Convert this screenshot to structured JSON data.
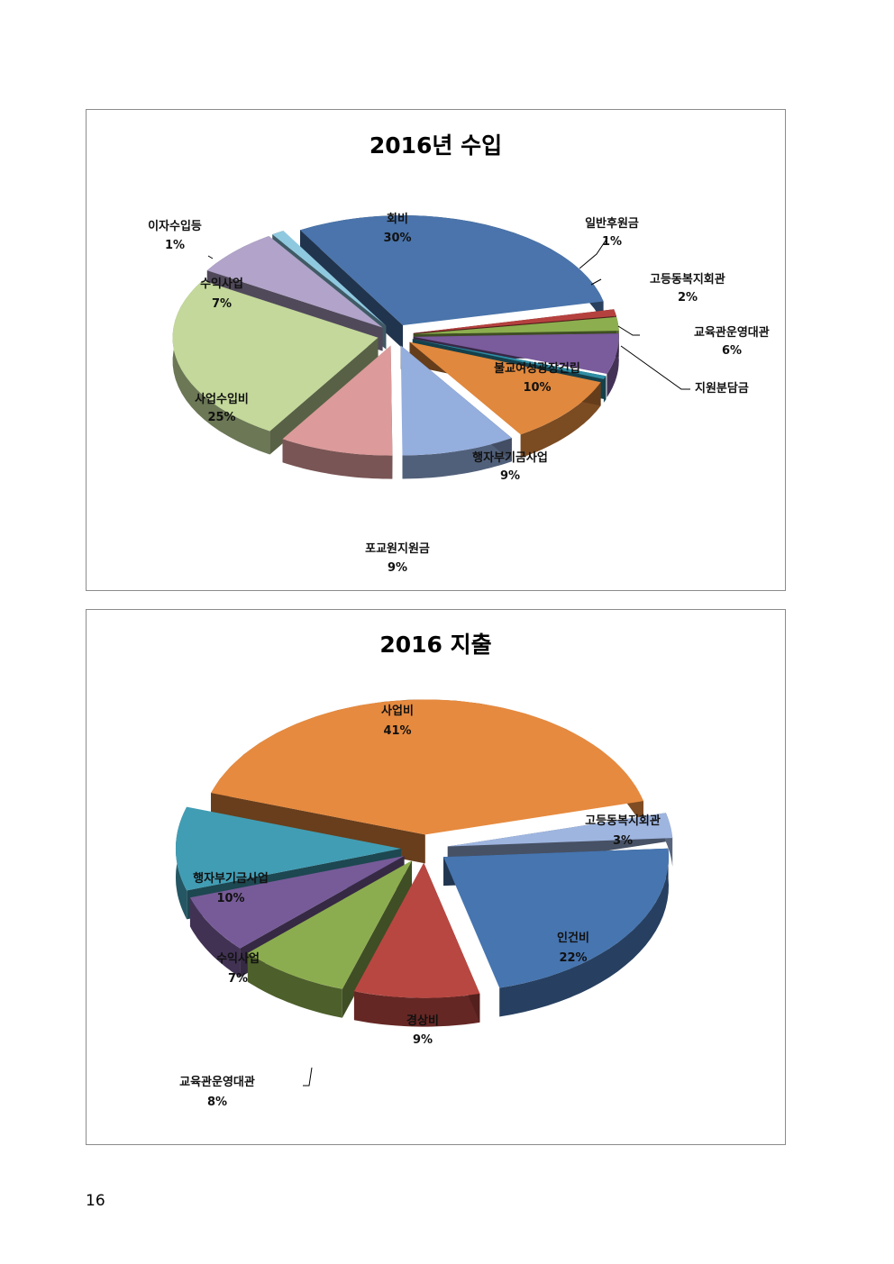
{
  "page": {
    "number": "16"
  },
  "chart_data": [
    {
      "type": "pie",
      "title": "2016년 수입",
      "slices": [
        {
          "name": "회비",
          "value": 30,
          "label": "30%",
          "color": "#4a74ab"
        },
        {
          "name": "일반후원금",
          "value": 1,
          "label": "1%",
          "color": "#b5413e"
        },
        {
          "name": "고등동복지회관",
          "value": 2,
          "label": "2%",
          "color": "#8cae4e"
        },
        {
          "name": "교육관운영대관",
          "value": 6,
          "label": "6%",
          "color": "#7a5b9c"
        },
        {
          "name": "지원분담금",
          "value": 0.5,
          "label": "",
          "color": "#2f8ea6"
        },
        {
          "name": "불교여성광장건립",
          "value": 10,
          "label": "10%",
          "color": "#e0883d"
        },
        {
          "name": "행자부기금사업",
          "value": 9,
          "label": "9%",
          "color": "#94aede"
        },
        {
          "name": "포교원지원금",
          "value": 9,
          "label": "9%",
          "color": "#dc9a9a"
        },
        {
          "name": "사업수입비",
          "value": 25,
          "label": "25%",
          "color": "#c3d89a"
        },
        {
          "name": "수익사업",
          "value": 7,
          "label": "7%",
          "color": "#b1a3c9"
        },
        {
          "name": "이자수입등",
          "value": 1,
          "label": "1%",
          "color": "#8fc9e0"
        }
      ]
    },
    {
      "type": "pie",
      "title": "2016  지출",
      "slices": [
        {
          "name": "사업비",
          "value": 41,
          "label": "41%",
          "color": "#e68a3f"
        },
        {
          "name": "고등동복지회관",
          "value": 3,
          "label": "3%",
          "color": "#9eb5e0"
        },
        {
          "name": "인건비",
          "value": 22,
          "label": "22%",
          "color": "#4675b0"
        },
        {
          "name": "경상비",
          "value": 9,
          "label": "9%",
          "color": "#b84741"
        },
        {
          "name": "교육관운영대관",
          "value": 8,
          "label": "8%",
          "color": "#8cad4f"
        },
        {
          "name": "수익사업",
          "value": 7,
          "label": "7%",
          "color": "#775b98"
        },
        {
          "name": "행자부기금사업",
          "value": 10,
          "label": "10%",
          "color": "#419db4"
        }
      ]
    }
  ]
}
